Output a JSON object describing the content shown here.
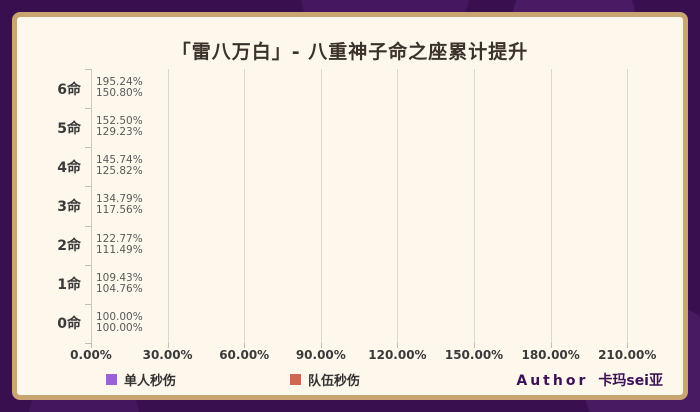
{
  "title": "「雷八万白」- 八重神子命之座累计提升",
  "chart_data": {
    "type": "bar",
    "orientation": "horizontal",
    "title": "「雷八万白」- 八重神子命之座累计提升",
    "categories": [
      "6命",
      "5命",
      "4命",
      "3命",
      "2命",
      "1命",
      "0命"
    ],
    "series": [
      {
        "name": "单人秒伤",
        "color": "#9a62d2",
        "values": [
          195.24,
          152.5,
          145.74,
          134.79,
          122.77,
          109.43,
          100.0
        ]
      },
      {
        "name": "队伍秒伤",
        "color": "#cd6950",
        "values": [
          150.8,
          129.23,
          125.82,
          117.56,
          111.49,
          104.76,
          100.0
        ]
      }
    ],
    "value_suffix": "%",
    "tick_values": [
      0,
      30,
      60,
      90,
      120,
      150,
      180,
      210
    ],
    "tick_labels": [
      "0.00%",
      "30.00%",
      "60.00%",
      "90.00%",
      "120.00%",
      "150.00%",
      "180.00%",
      "210.00%"
    ],
    "xmax": 224,
    "grid": true,
    "legend_position": "bottom"
  },
  "author": {
    "prefix": "Author",
    "name": "卡玛sei亚"
  },
  "colors": {
    "background": "#3a0f50",
    "card": "#fdf7ec",
    "border": "#c9a571",
    "series_single": "#9a62d2",
    "series_team": "#cd6950"
  }
}
